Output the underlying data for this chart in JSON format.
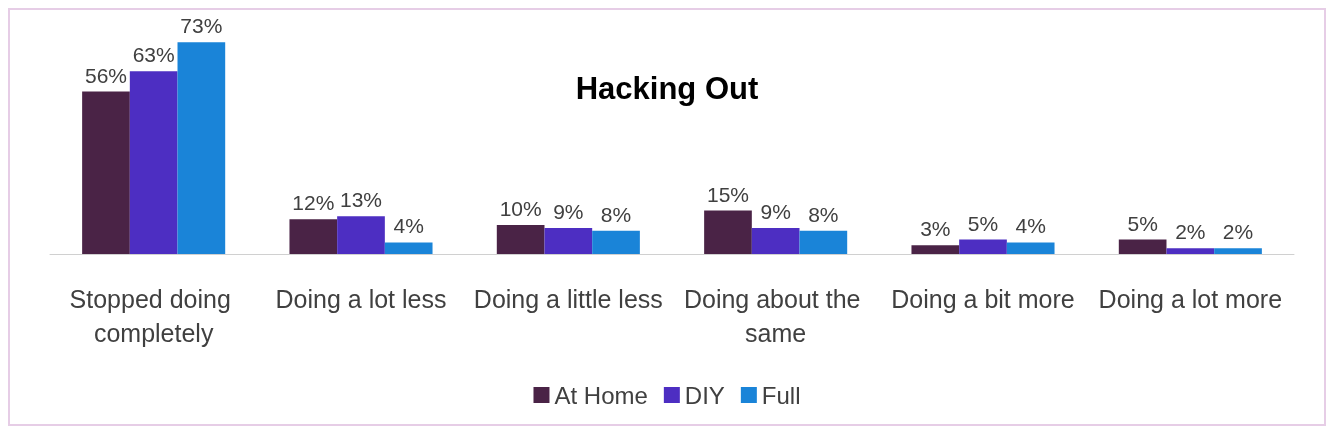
{
  "chart_data": {
    "type": "bar",
    "title": "Hacking Out",
    "categories": [
      "Stopped doing completely",
      "Doing a lot less",
      "Doing a little less",
      "Doing about the same",
      "Doing a bit more",
      "Doing a lot more"
    ],
    "series": [
      {
        "name": "At Home",
        "color": "#4a2346",
        "values": [
          56,
          12,
          10,
          15,
          3,
          5
        ],
        "value_labels": [
          "56%",
          "12%",
          "10%",
          "15%",
          "3%",
          "5%"
        ]
      },
      {
        "name": "DIY",
        "color": "#4d2ec2",
        "values": [
          63,
          13,
          9,
          9,
          5,
          2
        ],
        "value_labels": [
          "63%",
          "13%",
          "9%",
          "9%",
          "5%",
          "2%"
        ]
      },
      {
        "name": "Full",
        "color": "#1a84d8",
        "values": [
          73,
          4,
          8,
          8,
          4,
          2
        ],
        "value_labels": [
          "73%",
          "4%",
          "8%",
          "8%",
          "4%",
          "2%"
        ]
      }
    ],
    "grid": false,
    "legend": "bottom"
  }
}
